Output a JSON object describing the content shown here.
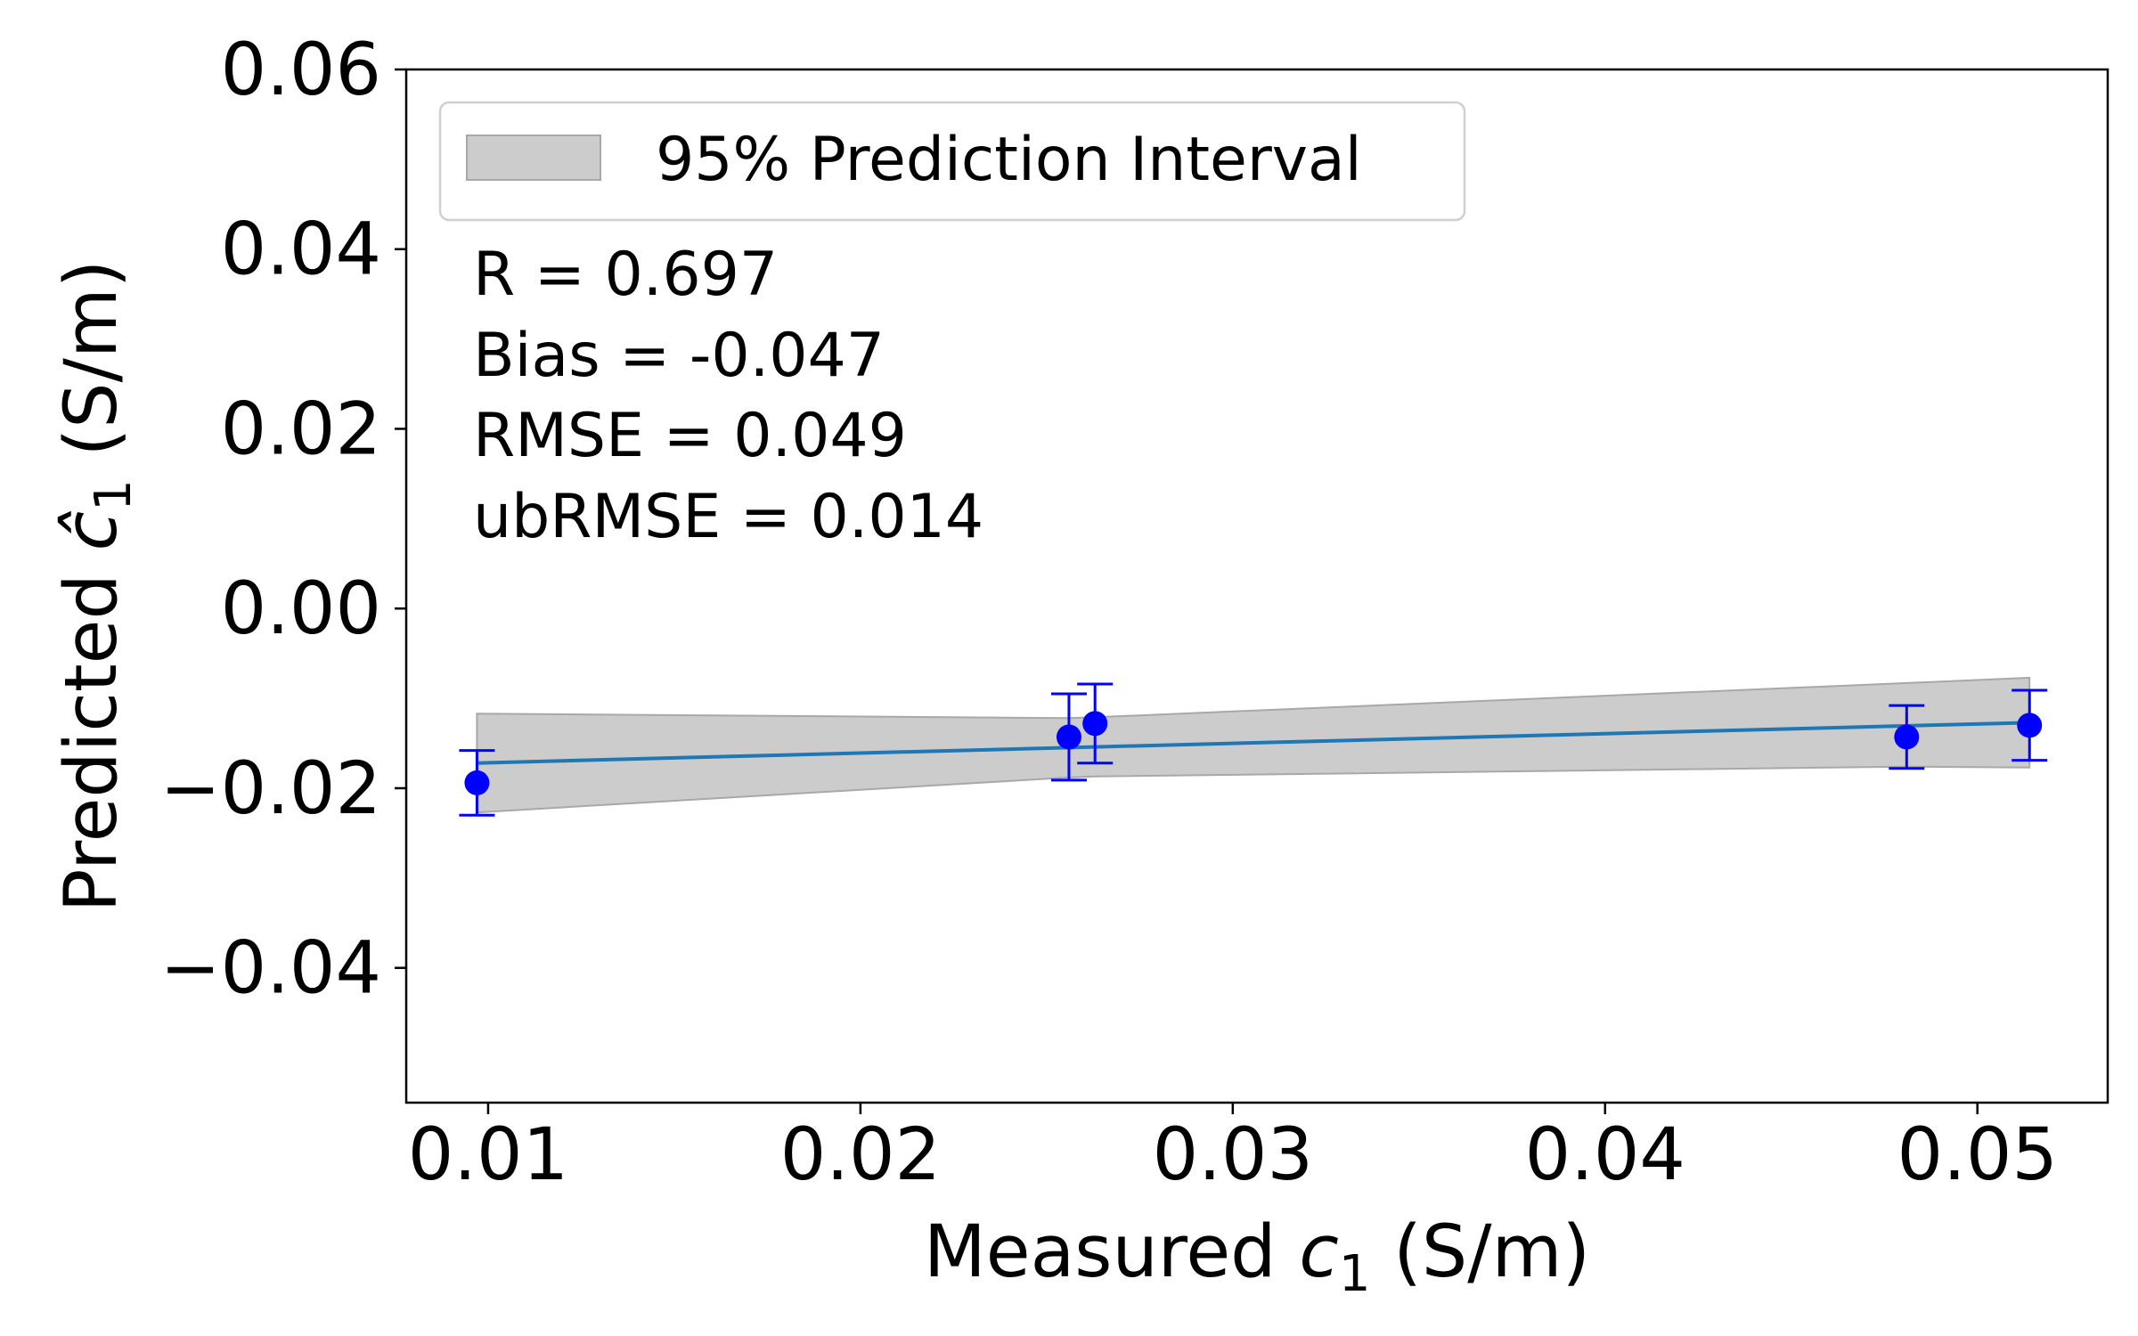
{
  "chart_data": {
    "type": "scatter",
    "title": "",
    "xlabel": {
      "prefix": "Measured ",
      "var": "c",
      "sub": "1",
      "suffix": " (S/m)"
    },
    "ylabel": {
      "prefix": "Predicted ",
      "var": "ĉ",
      "sub": "1",
      "suffix": " (S/m)"
    },
    "xlim": [
      0.0078,
      0.0535
    ],
    "ylim": [
      -0.055,
      0.06
    ],
    "xticks": [
      0.01,
      0.02,
      0.03,
      0.04,
      0.05
    ],
    "xtick_labels": [
      "0.01",
      "0.02",
      "0.03",
      "0.04",
      "0.05"
    ],
    "yticks": [
      -0.04,
      -0.02,
      0.0,
      0.02,
      0.04,
      0.06
    ],
    "ytick_labels": [
      "−0.04",
      "−0.02",
      "0.00",
      "0.02",
      "0.04",
      "0.06"
    ],
    "grid": false,
    "series": [
      {
        "name": "Predicted",
        "color": "#0000ff",
        "x": [
          0.0097,
          0.0256,
          0.0263,
          0.0481,
          0.0514
        ],
        "y": [
          -0.0194,
          -0.0143,
          -0.0128,
          -0.0143,
          -0.013
        ],
        "yerr": [
          0.0036,
          0.0048,
          0.0044,
          0.0035,
          0.0039
        ]
      }
    ],
    "fit_line": {
      "color": "#1f77b4",
      "x": [
        0.0097,
        0.0514
      ],
      "y": [
        -0.0172,
        -0.0127
      ]
    },
    "prediction_interval": {
      "label": "95% Prediction Interval",
      "color": "#cccccc",
      "x": [
        0.0097,
        0.0256,
        0.0263,
        0.0481,
        0.0514
      ],
      "upper": [
        -0.0117,
        -0.0122,
        -0.0121,
        -0.0083,
        -0.0077
      ],
      "lower": [
        -0.0227,
        -0.0188,
        -0.0187,
        -0.0176,
        -0.0177
      ]
    },
    "legend": {
      "location": "top-left",
      "entries": [
        "95% Prediction Interval"
      ]
    },
    "annotations": [
      "R = 0.697",
      "Bias = -0.047",
      "RMSE = 0.049",
      "ubRMSE = 0.014"
    ]
  }
}
